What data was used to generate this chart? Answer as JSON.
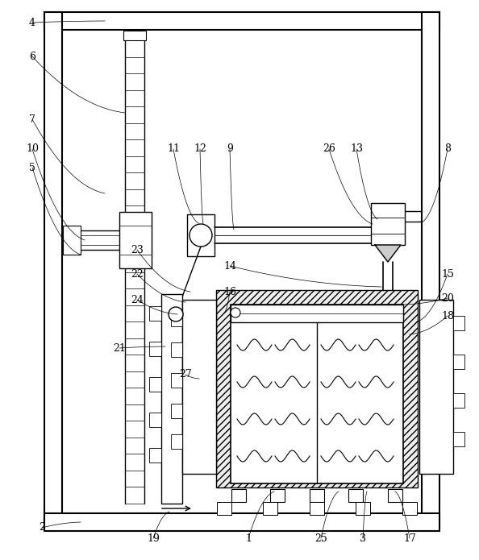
{
  "fig_width": 5.94,
  "fig_height": 6.95,
  "dpi": 100,
  "bg_color": "#ffffff"
}
